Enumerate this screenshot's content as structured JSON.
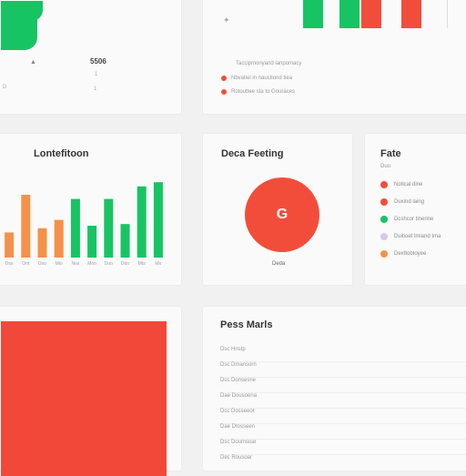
{
  "top_left": {
    "icon": "chart-icon",
    "value": "5506",
    "labels": [
      "D",
      "1",
      "1"
    ]
  },
  "top_right": {
    "icon": "star-icon",
    "bar_colors": [
      "#17c463",
      "#17c463",
      "#f24d3b",
      "#f24d3b"
    ],
    "caption": "Taccipmonyand lanpomacy",
    "rows": [
      {
        "text": "Nbvatiel in nauctiond tiea",
        "color": "#f24d3b"
      },
      {
        "text": "Rotouttee sta to Gouraces",
        "color": "#f24d3b"
      }
    ]
  },
  "bar_chart": {
    "title": "Lontefitoon",
    "chart_data": {
      "type": "bar",
      "categories": [
        "Dss",
        "Ont",
        "Doo",
        "Mio",
        "Nos",
        "Moo",
        "Doo",
        "Dbo",
        "Mts",
        "Mo"
      ],
      "values": [
        30,
        75,
        35,
        45,
        70,
        38,
        70,
        40,
        85,
        90
      ],
      "colors": [
        "#f5914a",
        "#f5914a",
        "#f5914a",
        "#f5914a",
        "#17c463",
        "#17c463",
        "#17c463",
        "#17c463",
        "#17c463",
        "#17c463"
      ],
      "ylim": [
        0,
        100
      ]
    }
  },
  "donut": {
    "title": "Deca Feeting",
    "glyph": "G",
    "color": "#f24d3b",
    "caption": "Deda"
  },
  "legend": {
    "title": "Fate",
    "subtitle": "Duo",
    "items": [
      {
        "label": "Notical dine",
        "color": "#f24d3b"
      },
      {
        "label": "Duxind laing",
        "color": "#f24d3b"
      },
      {
        "label": "Dcshcor tinerine",
        "color": "#17c463"
      },
      {
        "label": "Duitioet lmiand tma",
        "color": "#d9c7ec"
      },
      {
        "label": "Dexttobtoyee",
        "color": "#f5914a"
      }
    ]
  },
  "table": {
    "title": "Pess Marls",
    "rows": [
      "Dsc Hnstp",
      "Dsc Dmansorn",
      "Dcc Donsesne",
      "Dae Dousoena",
      "Dcc Dosseeor",
      "Dae Dtosseen",
      "Dsc Doumsoar",
      "Dec Rousoar"
    ]
  }
}
